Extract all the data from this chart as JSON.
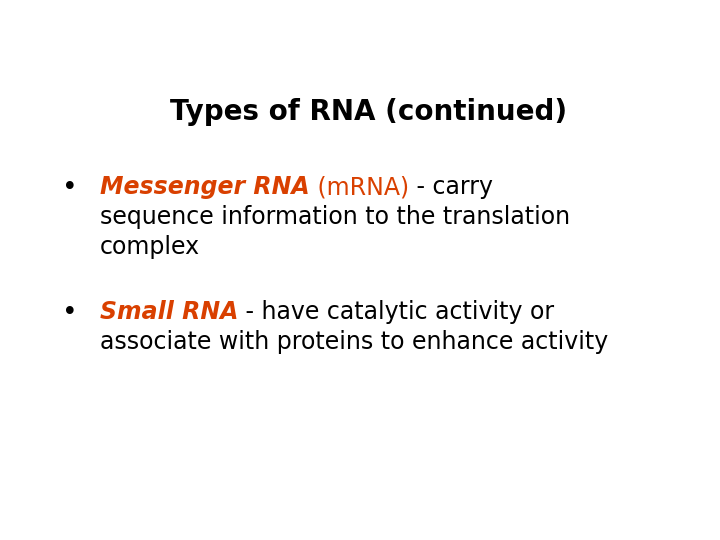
{
  "title": "Types of RNA (continued)",
  "title_fontsize": 20,
  "title_color": "#000000",
  "background_color": "#ffffff",
  "orange_color": "#d94000",
  "black_color": "#000000",
  "bullet_fontsize": 17,
  "title_weight": "bold",
  "bullet_symbol": "•",
  "items": [
    {
      "segments_line1": [
        {
          "text": "Messenger RNA",
          "color": "#d94000",
          "bold": true,
          "italic": true
        },
        {
          "text": " (mRNA)",
          "color": "#d94000",
          "bold": false,
          "italic": false
        },
        {
          "text": " - carry",
          "color": "#000000",
          "bold": false,
          "italic": false
        }
      ],
      "extra_lines": [
        "sequence information to the translation",
        "complex"
      ]
    },
    {
      "segments_line1": [
        {
          "text": "Small RNA",
          "color": "#d94000",
          "bold": true,
          "italic": true
        },
        {
          "text": " - have catalytic activity or",
          "color": "#000000",
          "bold": false,
          "italic": false
        }
      ],
      "extra_lines": [
        "associate with proteins to enhance activity"
      ]
    }
  ]
}
